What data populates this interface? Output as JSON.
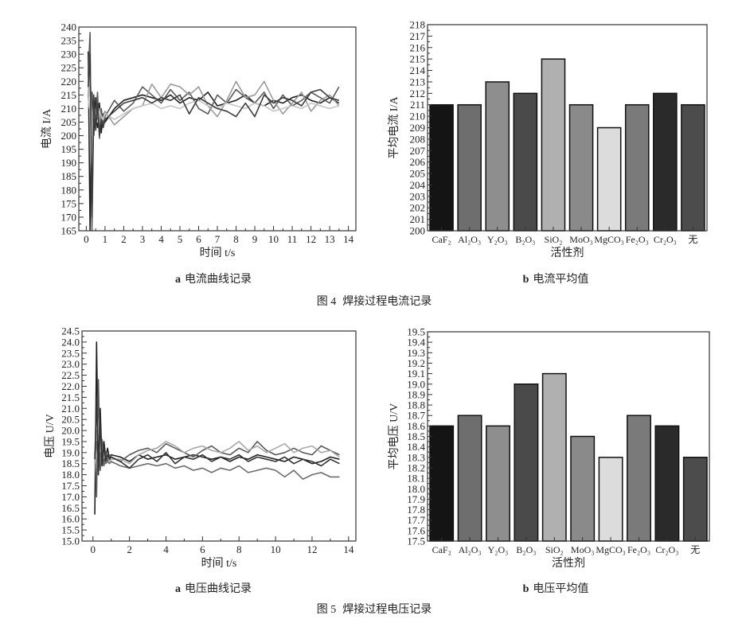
{
  "captions": {
    "fig4_a": {
      "letter": "a",
      "text": "电流曲线记录"
    },
    "fig4_b": {
      "letter": "b",
      "text": "电流平均值"
    },
    "fig4": {
      "label": "图 4",
      "text": "焊接过程电流记录"
    },
    "fig5_a": {
      "letter": "a",
      "text": "电压曲线记录"
    },
    "fig5_b": {
      "letter": "b",
      "text": "电压平均值"
    },
    "fig5": {
      "label": "图 5",
      "text": "焊接过程电压记录"
    }
  },
  "chart_data": [
    {
      "id": "current-curve",
      "type": "line",
      "xlabel": "时间 t/s",
      "ylabel": "电流 I/A",
      "xlim": [
        -0.4,
        14.4
      ],
      "ylim": [
        165,
        240
      ],
      "xticks": [
        0,
        1,
        2,
        3,
        4,
        5,
        6,
        7,
        8,
        9,
        10,
        11,
        12,
        13,
        14
      ],
      "yticks": [
        165,
        170,
        175,
        180,
        185,
        190,
        195,
        200,
        205,
        210,
        215,
        220,
        225,
        230,
        235,
        240
      ],
      "grid": false,
      "x": [
        0.1,
        0.2,
        0.3,
        0.4,
        0.5,
        0.6,
        0.7,
        0.8,
        0.9,
        1.0,
        1.5,
        2,
        2.5,
        3,
        3.5,
        4,
        4.5,
        5,
        5.5,
        6,
        6.5,
        7,
        7.5,
        8,
        8.5,
        9,
        9.5,
        10,
        10.5,
        11,
        11.5,
        12,
        12.5,
        13,
        13.5
      ],
      "series": [
        {
          "color": "#222222",
          "values": [
            231,
            165,
            216,
            200,
            214,
            203,
            212,
            201,
            208,
            205,
            210,
            213,
            214,
            215,
            214,
            213,
            215,
            212,
            214,
            213,
            216,
            211,
            212,
            213,
            215,
            212,
            211,
            213,
            212,
            214,
            215,
            213,
            212,
            214,
            212
          ]
        },
        {
          "color": "#5a5a5a",
          "values": [
            222,
            238,
            165,
            210,
            206,
            216,
            199,
            210,
            204,
            207,
            213,
            209,
            212,
            218,
            215,
            212,
            217,
            213,
            216,
            210,
            208,
            215,
            212,
            217,
            214,
            212,
            216,
            210,
            215,
            211,
            213,
            216,
            214,
            212,
            218
          ]
        },
        {
          "color": "#9a9a9a",
          "values": [
            215,
            225,
            205,
            212,
            208,
            207,
            210,
            205,
            207,
            209,
            204,
            207,
            210,
            211,
            219,
            214,
            219,
            218,
            215,
            218,
            211,
            207,
            213,
            220,
            214,
            215,
            220,
            213,
            208,
            212,
            216,
            209,
            213,
            215,
            211
          ]
        },
        {
          "color": "#c4c4c4",
          "values": [
            210,
            220,
            200,
            208,
            206,
            205,
            209,
            207,
            206,
            208,
            206,
            208,
            210,
            211,
            212,
            210,
            211,
            210,
            212,
            213,
            211,
            210,
            212,
            211,
            210,
            212,
            211,
            209,
            210,
            211,
            210,
            212,
            211,
            210,
            211
          ]
        },
        {
          "color": "#3c3c3c",
          "values": [
            218,
            230,
            170,
            215,
            202,
            212,
            200,
            206,
            203,
            206,
            209,
            212,
            213,
            214,
            212,
            214,
            213,
            215,
            208,
            214,
            212,
            210,
            209,
            207,
            212,
            207,
            215,
            212,
            214,
            213,
            211,
            216,
            217,
            214,
            213
          ]
        }
      ]
    },
    {
      "id": "current-mean",
      "type": "bar",
      "xlabel": "活性剂",
      "ylabel": "平均电流 I/A",
      "ylim": [
        200,
        218
      ],
      "yticks": [
        200,
        201,
        202,
        203,
        204,
        205,
        206,
        207,
        208,
        209,
        210,
        211,
        212,
        213,
        214,
        215,
        216,
        217,
        218
      ],
      "categories": [
        "CaF₂",
        "Al₂O₃",
        "Y₂O₃",
        "B₂O₃",
        "SiO₂",
        "MoO₃",
        "MgCO₃",
        "Fe₂O₃",
        "Cr₂O₃",
        "无"
      ],
      "values": [
        211,
        211,
        213,
        212,
        215,
        211,
        209,
        211,
        212,
        211
      ],
      "colors": [
        "#141414",
        "#6e6e6e",
        "#8e8e8e",
        "#4a4a4a",
        "#b0b0b0",
        "#8a8a8a",
        "#dcdcdc",
        "#7a7a7a",
        "#2a2a2a",
        "#4c4c4c"
      ]
    },
    {
      "id": "voltage-curve",
      "type": "line",
      "xlabel": "时间 t/s",
      "ylabel": "电压 U/V",
      "xlim": [
        -0.6,
        14.4
      ],
      "ylim": [
        15.0,
        24.5
      ],
      "xticks": [
        0,
        2,
        4,
        6,
        8,
        10,
        12,
        14
      ],
      "yticks": [
        15.0,
        15.5,
        16.0,
        16.5,
        17.0,
        17.5,
        18.0,
        18.5,
        19.0,
        19.5,
        20.0,
        20.5,
        21.0,
        21.5,
        22.0,
        22.5,
        23.0,
        23.5,
        24.0,
        24.5
      ],
      "grid": false,
      "x": [
        0.1,
        0.2,
        0.3,
        0.4,
        0.5,
        0.6,
        0.7,
        0.8,
        0.9,
        1.0,
        1.5,
        2,
        2.5,
        3,
        3.5,
        4,
        4.5,
        5,
        5.5,
        6,
        6.5,
        7,
        7.5,
        8,
        8.5,
        9,
        9.5,
        10,
        10.5,
        11,
        11.5,
        12,
        12.5,
        13,
        13.5
      ],
      "series": [
        {
          "color": "#222222",
          "values": [
            16.2,
            24.0,
            18.0,
            21.0,
            18.5,
            19.5,
            18.8,
            19.2,
            18.7,
            18.9,
            18.8,
            18.6,
            18.9,
            18.7,
            18.8,
            18.9,
            18.7,
            18.8,
            18.9,
            18.8,
            18.7,
            18.8,
            18.6,
            18.8,
            18.7,
            18.9,
            18.8,
            18.7,
            18.6,
            18.8,
            18.7,
            18.5,
            18.6,
            18.8,
            18.7
          ]
        },
        {
          "color": "#5a5a5a",
          "values": [
            19.0,
            17.0,
            22.3,
            18.2,
            19.6,
            18.4,
            19.0,
            18.6,
            18.9,
            18.8,
            18.6,
            18.9,
            19.1,
            19.2,
            19.0,
            19.4,
            19.2,
            19.0,
            18.8,
            19.1,
            19.3,
            19.0,
            18.9,
            19.2,
            19.0,
            19.5,
            19.1,
            18.9,
            19.0,
            19.2,
            19.0,
            18.9,
            19.3,
            19.1,
            18.9
          ]
        },
        {
          "color": "#a8a8a8",
          "values": [
            18.5,
            20.0,
            18.0,
            19.5,
            18.6,
            18.9,
            18.7,
            18.8,
            18.6,
            18.7,
            18.7,
            18.5,
            18.9,
            19.1,
            19.2,
            19.5,
            19.3,
            19.0,
            19.2,
            19.3,
            19.1,
            19.0,
            19.2,
            19.5,
            19.1,
            19.3,
            19.0,
            19.2,
            19.4,
            19.0,
            19.2,
            19.3,
            19.0,
            19.1,
            18.8
          ]
        },
        {
          "color": "#6c6c6c",
          "values": [
            18.8,
            19.5,
            18.2,
            19.0,
            18.4,
            18.6,
            18.5,
            18.6,
            18.5,
            18.6,
            18.4,
            18.3,
            18.4,
            18.5,
            18.4,
            18.5,
            18.3,
            18.4,
            18.2,
            18.3,
            18.1,
            18.3,
            18.2,
            18.4,
            18.1,
            18.2,
            18.3,
            18.2,
            17.9,
            18.2,
            17.8,
            18.0,
            18.1,
            17.9,
            17.9
          ]
        },
        {
          "color": "#333333",
          "values": [
            18.7,
            21.5,
            18.0,
            20.5,
            18.4,
            19.3,
            18.6,
            18.9,
            18.7,
            18.8,
            18.6,
            18.3,
            18.7,
            18.9,
            18.6,
            19.0,
            18.5,
            18.8,
            18.7,
            18.9,
            18.6,
            18.8,
            18.7,
            18.9,
            18.6,
            18.8,
            18.7,
            18.6,
            18.8,
            18.5,
            18.7,
            18.6,
            18.4,
            18.7,
            18.5
          ]
        }
      ]
    },
    {
      "id": "voltage-mean",
      "type": "bar",
      "xlabel": "活性剂",
      "ylabel": "平均电压 U/V",
      "ylim": [
        17.5,
        19.5
      ],
      "yticks": [
        17.5,
        17.6,
        17.7,
        17.8,
        17.9,
        18.0,
        18.1,
        18.2,
        18.3,
        18.4,
        18.5,
        18.6,
        18.7,
        18.8,
        18.9,
        19.0,
        19.1,
        19.2,
        19.3,
        19.4,
        19.5
      ],
      "categories": [
        "CaF₂",
        "Al₂O₃",
        "Y₂O₃",
        "B₂O₃",
        "SiO₂",
        "MoO₃",
        "MgCO₃",
        "Fe₂O₃",
        "Cr₂O₃",
        "无"
      ],
      "values": [
        18.6,
        18.7,
        18.6,
        19.0,
        19.1,
        18.5,
        18.3,
        18.7,
        18.6,
        18.3
      ],
      "colors": [
        "#141414",
        "#6e6e6e",
        "#8e8e8e",
        "#4a4a4a",
        "#b0b0b0",
        "#8a8a8a",
        "#dcdcdc",
        "#7a7a7a",
        "#2a2a2a",
        "#4c4c4c"
      ]
    }
  ]
}
